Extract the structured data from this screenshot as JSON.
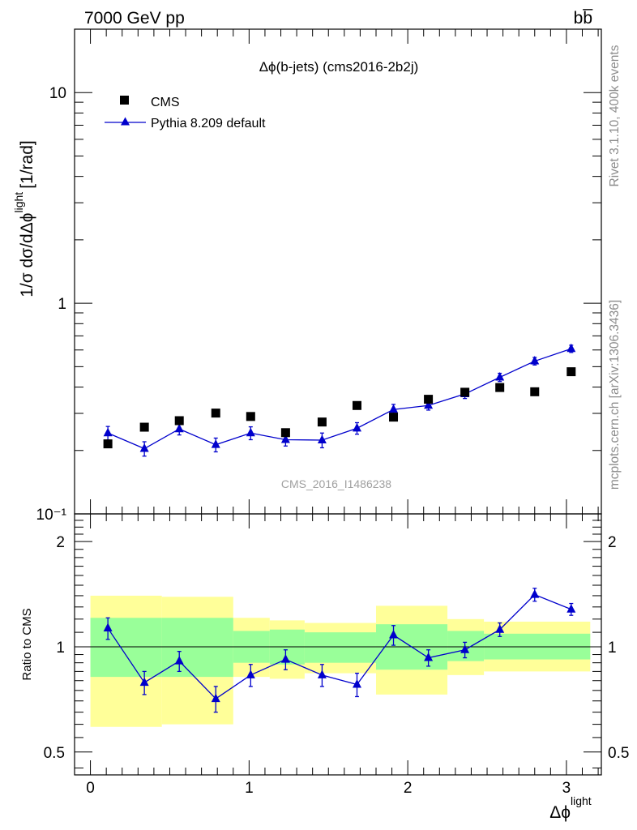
{
  "header": {
    "left": "7000 GeV pp",
    "right": "bb̅"
  },
  "side_text": {
    "rivet": "Rivet 3.1.10,  400k events",
    "mcplots": "mcplots.cern.ch [arXiv:1306.3436]"
  },
  "chart_data": [
    {
      "type": "scatter",
      "title": "Δϕ(b-jets) (cms2016-2b2j)",
      "watermark": "CMS_2016_I1486238",
      "xlabel": "Δϕ",
      "xlabel_sup": "light",
      "ylabel": "1/σ dσ/dΔϕ",
      "ylabel_sup": "light",
      "ylabel_unit": "[1/rad]",
      "xlim": [
        -0.1,
        3.22
      ],
      "ylim": [
        0.1,
        20
      ],
      "yscale": "log",
      "x_ticks": [
        0,
        1,
        2,
        3
      ],
      "y_tick_labels": {
        "0.1": "10⁻¹",
        "1": "1",
        "10": "10"
      },
      "legend": {
        "position": "top-left",
        "entries": [
          "CMS",
          "Pythia 8.209 default"
        ]
      },
      "series": [
        {
          "name": "CMS",
          "style": "markers",
          "marker": "square",
          "color": "#000000",
          "x": [
            0.11,
            0.34,
            0.56,
            0.79,
            1.01,
            1.23,
            1.46,
            1.68,
            1.91,
            2.13,
            2.36,
            2.58,
            2.8,
            3.03
          ],
          "y": [
            0.215,
            0.258,
            0.277,
            0.301,
            0.29,
            0.243,
            0.273,
            0.327,
            0.288,
            0.35,
            0.378,
            0.398,
            0.38,
            0.473
          ]
        },
        {
          "name": "Pythia 8.209 default",
          "style": "line+markers",
          "marker": "triangle",
          "color": "#0000cc",
          "x": [
            0.11,
            0.34,
            0.56,
            0.79,
            1.01,
            1.23,
            1.46,
            1.68,
            1.91,
            2.13,
            2.36,
            2.58,
            2.8,
            3.03
          ],
          "y": [
            0.242,
            0.204,
            0.253,
            0.213,
            0.242,
            0.225,
            0.224,
            0.255,
            0.313,
            0.327,
            0.371,
            0.445,
            0.531,
            0.608
          ],
          "yerr": [
            0.018,
            0.016,
            0.016,
            0.016,
            0.017,
            0.015,
            0.018,
            0.016,
            0.018,
            0.016,
            0.018,
            0.02,
            0.022,
            0.024
          ]
        }
      ]
    },
    {
      "type": "scatter",
      "ylabel": "Ratio to CMS",
      "xlim": [
        -0.1,
        3.22
      ],
      "ylim": [
        0.43,
        2.4
      ],
      "yscale": "log",
      "y_tick_labels": {
        "0.5": "0.5",
        "1": "1",
        "2": "2"
      },
      "bands": {
        "bin_edges": [
          0,
          0.45,
          0.9,
          1.13,
          1.35,
          1.8,
          2.25,
          2.48,
          3.15
        ],
        "yellow_lo": [
          0.59,
          0.6,
          0.82,
          0.81,
          0.84,
          0.73,
          0.83,
          0.85,
          0.86
        ],
        "yellow_hi": [
          1.4,
          1.39,
          1.21,
          1.19,
          1.17,
          1.31,
          1.2,
          1.18,
          1.17
        ],
        "green_lo": [
          0.82,
          0.82,
          0.9,
          0.89,
          0.9,
          0.86,
          0.91,
          0.92,
          0.92
        ],
        "green_hi": [
          1.21,
          1.21,
          1.11,
          1.12,
          1.1,
          1.16,
          1.11,
          1.09,
          1.09
        ],
        "yellow_color": "#ffff99",
        "green_color": "#99ff99"
      },
      "series": [
        {
          "name": "Pythia 8.209 default",
          "style": "line+markers",
          "marker": "triangle",
          "color": "#0000cc",
          "x": [
            0.11,
            0.34,
            0.56,
            0.79,
            1.01,
            1.23,
            1.46,
            1.68,
            1.91,
            2.13,
            2.36,
            2.58,
            2.8,
            3.03
          ],
          "y": [
            1.13,
            0.79,
            0.91,
            0.71,
            0.83,
            0.92,
            0.83,
            0.78,
            1.08,
            0.93,
            0.98,
            1.12,
            1.41,
            1.28
          ],
          "yerr": [
            0.08,
            0.06,
            0.06,
            0.06,
            0.06,
            0.06,
            0.06,
            0.06,
            0.07,
            0.05,
            0.05,
            0.05,
            0.06,
            0.05
          ]
        }
      ]
    }
  ]
}
